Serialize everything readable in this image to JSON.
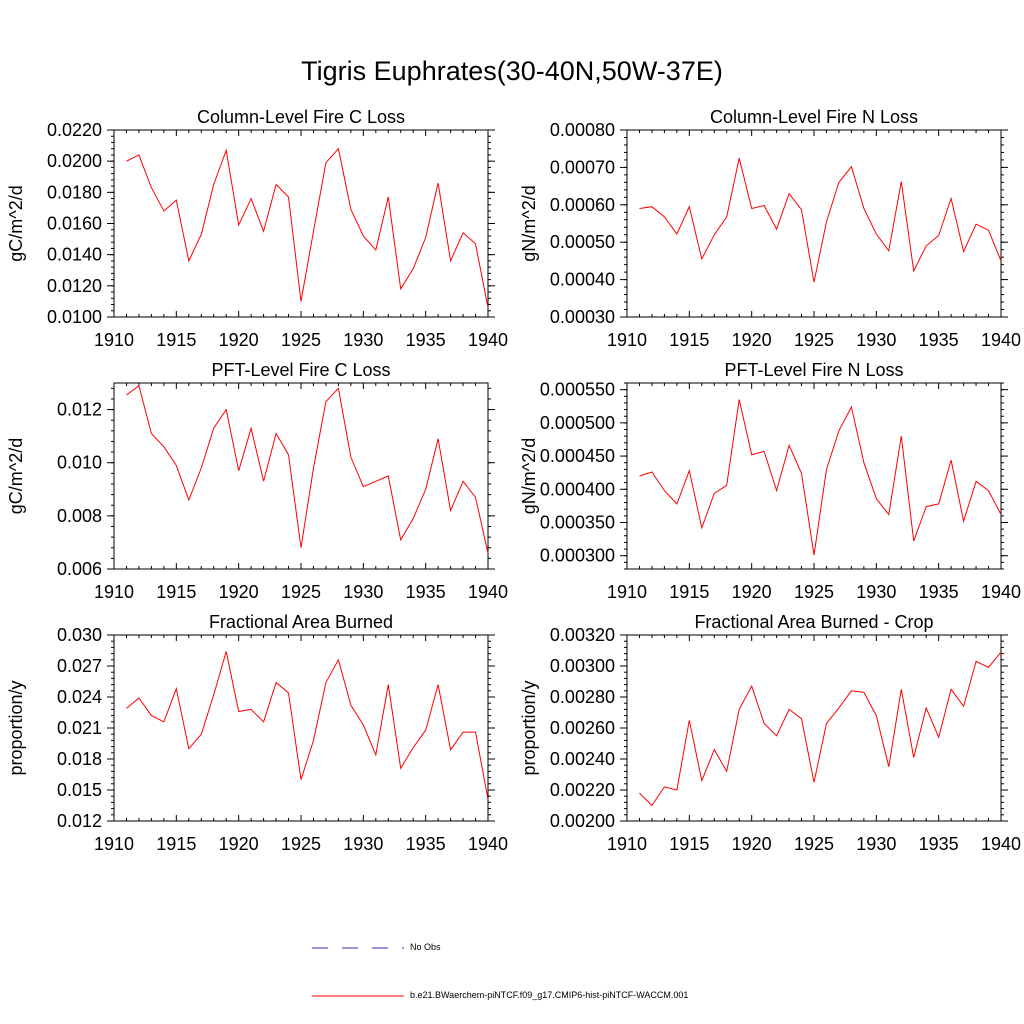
{
  "title": "Tigris Euphrates(30-40N,50W-37E)",
  "colors": {
    "model": "#ff0000",
    "obs": "#3030c0"
  },
  "legend": {
    "obs_label": "No Obs",
    "model_label": "b.e21.BWaerchem-piNTCF.f09_g17.CMIP6-hist-piNTCF-WACCM.001"
  },
  "chart_data": [
    {
      "type": "line",
      "title": "Column-Level Fire C Loss",
      "ylabel": "gC/m^2/d",
      "xlim": [
        1910,
        1940
      ],
      "ylim": [
        0.01,
        0.022
      ],
      "xticks": [
        1910,
        1915,
        1920,
        1925,
        1930,
        1935,
        1940
      ],
      "yticks": [
        "0.0100",
        "0.0120",
        "0.0140",
        "0.0160",
        "0.0180",
        "0.0200",
        "0.0220"
      ],
      "x": [
        1911,
        1912,
        1913,
        1914,
        1915,
        1916,
        1917,
        1918,
        1919,
        1920,
        1921,
        1922,
        1923,
        1924,
        1925,
        1926,
        1927,
        1928,
        1929,
        1930,
        1931,
        1932,
        1933,
        1934,
        1935,
        1936,
        1937,
        1938,
        1939,
        1940
      ],
      "series": [
        {
          "values": [
            0.02,
            0.0204,
            0.0183,
            0.0168,
            0.0175,
            0.0136,
            0.0153,
            0.0185,
            0.0207,
            0.0159,
            0.0176,
            0.0155,
            0.0185,
            0.0177,
            0.011,
            0.0155,
            0.0199,
            0.0208,
            0.0169,
            0.0152,
            0.0143,
            0.0177,
            0.0118,
            0.0131,
            0.0151,
            0.0186,
            0.0136,
            0.0154,
            0.0147,
            0.0106
          ]
        }
      ]
    },
    {
      "type": "line",
      "title": "Column-Level Fire N Loss",
      "ylabel": "gN/m^2/d",
      "xlim": [
        1910,
        1940
      ],
      "ylim": [
        0.0003,
        0.0008
      ],
      "xticks": [
        1910,
        1915,
        1920,
        1925,
        1930,
        1935,
        1940
      ],
      "yticks": [
        "0.00030",
        "0.00040",
        "0.00050",
        "0.00060",
        "0.00070",
        "0.00080"
      ],
      "x": [
        1911,
        1912,
        1913,
        1914,
        1915,
        1916,
        1917,
        1918,
        1919,
        1920,
        1921,
        1922,
        1923,
        1924,
        1925,
        1926,
        1927,
        1928,
        1929,
        1930,
        1931,
        1932,
        1933,
        1934,
        1935,
        1936,
        1937,
        1938,
        1939,
        1940
      ],
      "series": [
        {
          "values": [
            0.00059,
            0.000595,
            0.000568,
            0.000522,
            0.000595,
            0.000455,
            0.00052,
            0.000568,
            0.000725,
            0.00059,
            0.000598,
            0.000535,
            0.00063,
            0.000587,
            0.000393,
            0.000555,
            0.00066,
            0.000702,
            0.00059,
            0.000522,
            0.000477,
            0.000662,
            0.000423,
            0.00049,
            0.000518,
            0.000617,
            0.000475,
            0.000548,
            0.000532,
            0.00045
          ]
        }
      ]
    },
    {
      "type": "line",
      "title": "PFT-Level Fire C Loss",
      "ylabel": "gC/m^2/d",
      "xlim": [
        1910,
        1940
      ],
      "ylim": [
        0.006,
        0.013
      ],
      "xticks": [
        1910,
        1915,
        1920,
        1925,
        1930,
        1935,
        1940
      ],
      "yticks": [
        "0.006",
        "0.008",
        "0.010",
        "0.012"
      ],
      "ytick_values": [
        0.006,
        0.008,
        0.01,
        0.012
      ],
      "x": [
        1911,
        1912,
        1913,
        1914,
        1915,
        1916,
        1917,
        1918,
        1919,
        1920,
        1921,
        1922,
        1923,
        1924,
        1925,
        1926,
        1927,
        1928,
        1929,
        1930,
        1931,
        1932,
        1933,
        1934,
        1935,
        1936,
        1937,
        1938,
        1939,
        1940
      ],
      "series": [
        {
          "values": [
            0.01255,
            0.0129,
            0.0111,
            0.0106,
            0.0099,
            0.0086,
            0.0098,
            0.0113,
            0.012,
            0.0097,
            0.0113,
            0.0093,
            0.0111,
            0.0103,
            0.0068,
            0.0098,
            0.0123,
            0.0128,
            0.0102,
            0.0091,
            0.0093,
            0.0095,
            0.0071,
            0.0079,
            0.009,
            0.0109,
            0.0082,
            0.0093,
            0.0087,
            0.0066
          ]
        }
      ]
    },
    {
      "type": "line",
      "title": "PFT-Level Fire N Loss",
      "ylabel": "gN/m^2/d",
      "xlim": [
        1910,
        1940
      ],
      "ylim": [
        0.00028,
        0.00056
      ],
      "xticks": [
        1910,
        1915,
        1920,
        1925,
        1930,
        1935,
        1940
      ],
      "yticks": [
        "0.000300",
        "0.000350",
        "0.000400",
        "0.000450",
        "0.000500",
        "0.000550"
      ],
      "ytick_values": [
        0.0003,
        0.00035,
        0.0004,
        0.00045,
        0.0005,
        0.00055
      ],
      "x": [
        1911,
        1912,
        1913,
        1914,
        1915,
        1916,
        1917,
        1918,
        1919,
        1920,
        1921,
        1922,
        1923,
        1924,
        1925,
        1926,
        1927,
        1928,
        1929,
        1930,
        1931,
        1932,
        1933,
        1934,
        1935,
        1936,
        1937,
        1938,
        1939,
        1940
      ],
      "series": [
        {
          "values": [
            0.00042,
            0.000426,
            0.000398,
            0.000378,
            0.000428,
            0.000342,
            0.000394,
            0.000406,
            0.000535,
            0.000452,
            0.000457,
            0.000398,
            0.000466,
            0.000424,
            0.000301,
            0.00043,
            0.000488,
            0.000524,
            0.00044,
            0.000386,
            0.000362,
            0.00048,
            0.000322,
            0.000374,
            0.000378,
            0.000444,
            0.000352,
            0.000412,
            0.000398,
            0.000362
          ]
        }
      ]
    },
    {
      "type": "line",
      "title": "Fractional Area Burned",
      "ylabel": "proportion/y",
      "xlim": [
        1910,
        1940
      ],
      "ylim": [
        0.012,
        0.03
      ],
      "xticks": [
        1910,
        1915,
        1920,
        1925,
        1930,
        1935,
        1940
      ],
      "yticks": [
        "0.012",
        "0.015",
        "0.018",
        "0.021",
        "0.024",
        "0.027",
        "0.030"
      ],
      "x": [
        1911,
        1912,
        1913,
        1914,
        1915,
        1916,
        1917,
        1918,
        1919,
        1920,
        1921,
        1922,
        1923,
        1924,
        1925,
        1926,
        1927,
        1928,
        1929,
        1930,
        1931,
        1932,
        1933,
        1934,
        1935,
        1936,
        1937,
        1938,
        1939,
        1940
      ],
      "series": [
        {
          "values": [
            0.0229,
            0.0239,
            0.0222,
            0.0216,
            0.0248,
            0.019,
            0.0204,
            0.0242,
            0.0284,
            0.0226,
            0.0228,
            0.0216,
            0.0254,
            0.0244,
            0.016,
            0.0198,
            0.0254,
            0.0276,
            0.0232,
            0.0213,
            0.0184,
            0.0252,
            0.0171,
            0.0191,
            0.0208,
            0.0252,
            0.0189,
            0.0206,
            0.0206,
            0.0141
          ]
        }
      ]
    },
    {
      "type": "line",
      "title": "Fractional Area Burned - Crop",
      "ylabel": "proportion/y",
      "xlim": [
        1910,
        1940
      ],
      "ylim": [
        0.002,
        0.0032
      ],
      "xticks": [
        1910,
        1915,
        1920,
        1925,
        1930,
        1935,
        1940
      ],
      "yticks": [
        "0.00200",
        "0.00220",
        "0.00240",
        "0.00260",
        "0.00280",
        "0.00300",
        "0.00320"
      ],
      "x": [
        1911,
        1912,
        1913,
        1914,
        1915,
        1916,
        1917,
        1918,
        1919,
        1920,
        1921,
        1922,
        1923,
        1924,
        1925,
        1926,
        1927,
        1928,
        1929,
        1930,
        1931,
        1932,
        1933,
        1934,
        1935,
        1936,
        1937,
        1938,
        1939,
        1940
      ],
      "series": [
        {
          "values": [
            0.00218,
            0.0021,
            0.00222,
            0.0022,
            0.00265,
            0.00226,
            0.00246,
            0.00232,
            0.00272,
            0.00287,
            0.00263,
            0.00255,
            0.00272,
            0.00266,
            0.00225,
            0.00263,
            0.00273,
            0.00284,
            0.00283,
            0.00268,
            0.00235,
            0.00285,
            0.00241,
            0.00273,
            0.00254,
            0.00285,
            0.00274,
            0.00303,
            0.00299,
            0.00309
          ]
        }
      ]
    }
  ]
}
